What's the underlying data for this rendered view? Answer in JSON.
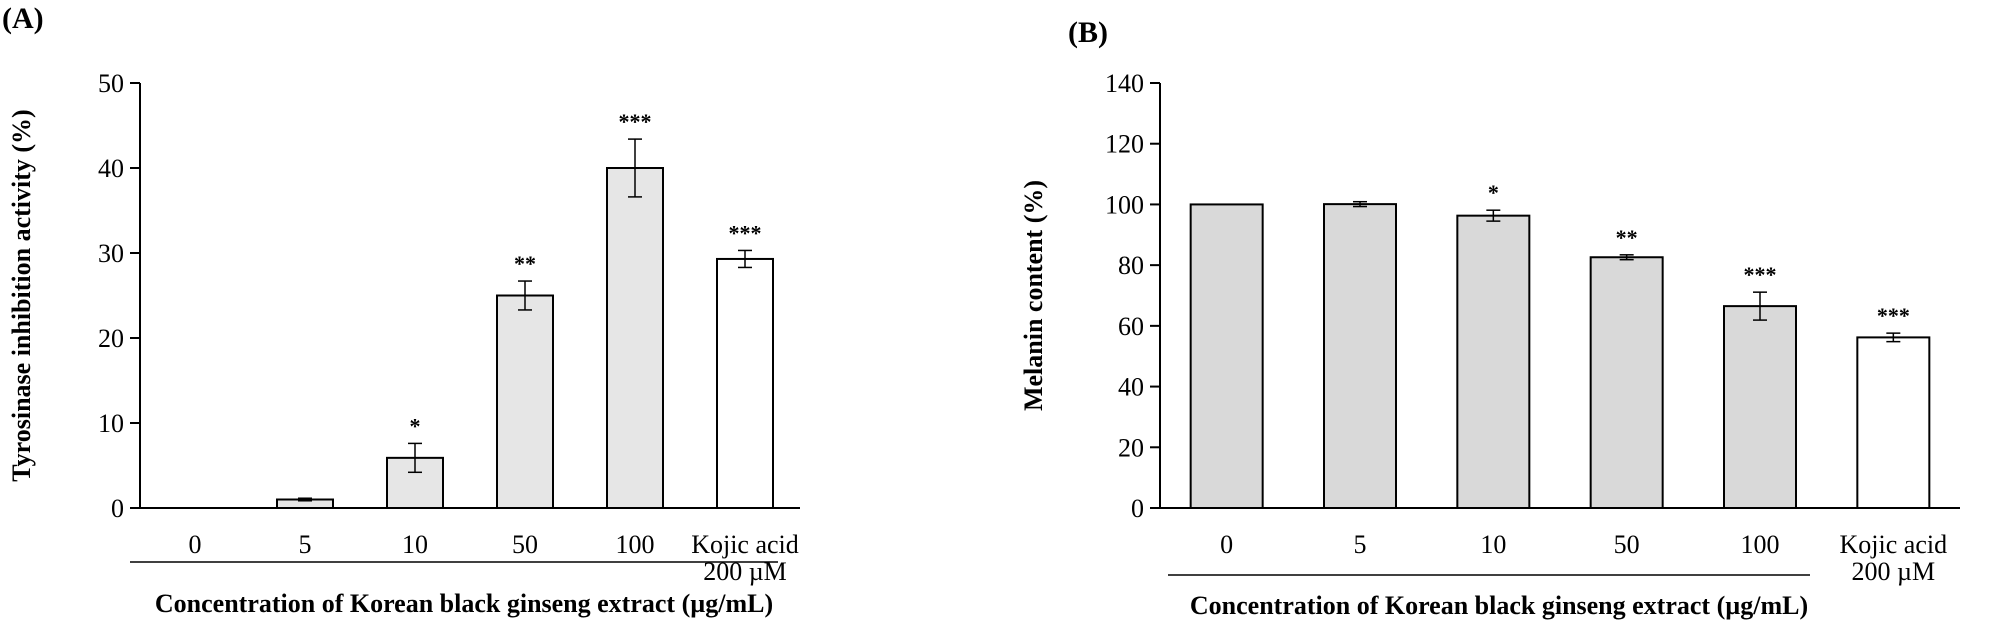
{
  "chart_data": [
    {
      "panel": "(A)",
      "type": "bar",
      "categories": [
        "0",
        "5",
        "10",
        "50",
        "100",
        "Kojic acid\n200 µM"
      ],
      "values": [
        0,
        1.0,
        5.9,
        25.0,
        40.0,
        29.3
      ],
      "errors": [
        0,
        0.15,
        1.7,
        1.7,
        3.4,
        1.0
      ],
      "significance": [
        "",
        "",
        "*",
        "**",
        "***",
        "***"
      ],
      "bar_colors": [
        "#e6e6e6",
        "#e6e6e6",
        "#e6e6e6",
        "#e6e6e6",
        "#e6e6e6",
        "#ffffff"
      ],
      "ylabel": "Tyrosinase inhibition activity (%)",
      "xlabel": "Concentration of Korean black ginseng extract (µg/mL)",
      "ylim": [
        0,
        50
      ],
      "yticks": [
        0,
        10,
        20,
        30,
        40,
        50
      ],
      "grid": false
    },
    {
      "panel": "(B)",
      "type": "bar",
      "categories": [
        "0",
        "5",
        "10",
        "50",
        "100",
        "Kojic acid\n200 µM"
      ],
      "values": [
        100,
        100.1,
        96.3,
        82.6,
        66.5,
        56.2
      ],
      "errors": [
        0,
        0.8,
        1.8,
        0.8,
        4.6,
        1.4
      ],
      "significance": [
        "",
        "",
        "*",
        "**",
        "***",
        "***"
      ],
      "bar_colors": [
        "#d9d9d9",
        "#d9d9d9",
        "#d9d9d9",
        "#d9d9d9",
        "#d9d9d9",
        "#ffffff"
      ],
      "ylabel": "Melanin content (%)",
      "xlabel": "Concentration of Korean black ginseng extract (µg/mL)",
      "ylim": [
        0,
        140
      ],
      "yticks": [
        0,
        20,
        40,
        60,
        80,
        100,
        120,
        140
      ],
      "grid": false
    }
  ]
}
